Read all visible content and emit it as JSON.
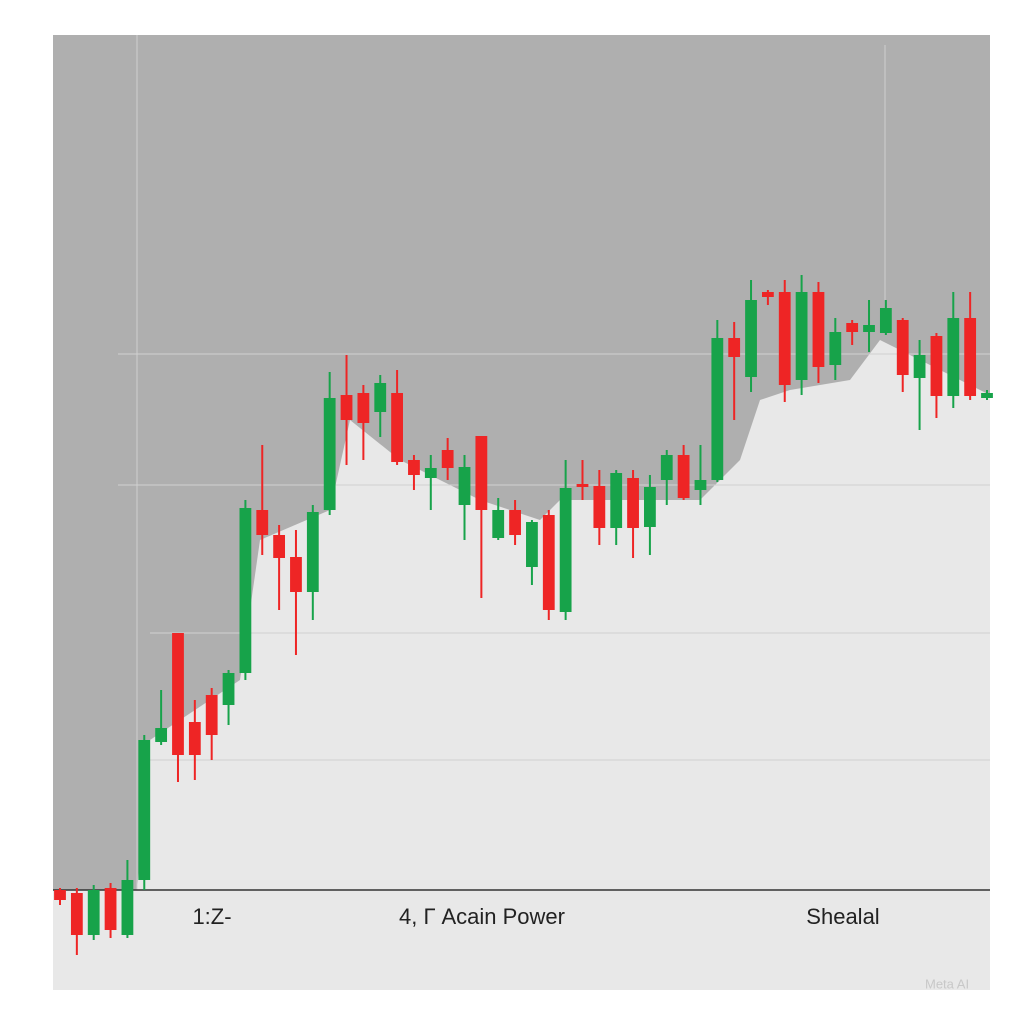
{
  "chart_data": {
    "type": "candlestick",
    "open": [
      110,
      107,
      65,
      112,
      65,
      120,
      258,
      367,
      278,
      305,
      295,
      327,
      490,
      465,
      443,
      408,
      490,
      605,
      607,
      588,
      607,
      540,
      522,
      550,
      495,
      564,
      462,
      490,
      433,
      485,
      388,
      516,
      514,
      472,
      522,
      473,
      520,
      545,
      510,
      520,
      662,
      623,
      708,
      708,
      620,
      708,
      635,
      677,
      668,
      667,
      680,
      622,
      664,
      604,
      682,
      602
    ],
    "high": [
      112,
      112,
      115,
      117,
      140,
      265,
      310,
      367,
      300,
      312,
      330,
      500,
      555,
      475,
      470,
      495,
      628,
      645,
      615,
      625,
      630,
      545,
      545,
      562,
      545,
      564,
      502,
      500,
      480,
      490,
      540,
      540,
      530,
      530,
      530,
      525,
      550,
      555,
      555,
      680,
      678,
      720,
      710,
      720,
      725,
      718,
      682,
      680,
      700,
      700,
      682,
      660,
      667,
      708,
      708,
      610
    ],
    "low": [
      95,
      45,
      60,
      62,
      62,
      110,
      255,
      218,
      220,
      240,
      275,
      320,
      445,
      390,
      345,
      380,
      485,
      535,
      540,
      563,
      535,
      510,
      490,
      520,
      460,
      402,
      460,
      455,
      415,
      380,
      380,
      500,
      455,
      455,
      442,
      445,
      495,
      500,
      495,
      518,
      580,
      608,
      695,
      598,
      605,
      617,
      620,
      655,
      648,
      665,
      608,
      570,
      582,
      592,
      600,
      600
    ],
    "close": [
      100,
      65,
      110,
      70,
      120,
      260,
      272,
      245,
      245,
      265,
      327,
      492,
      465,
      442,
      408,
      488,
      602,
      580,
      577,
      617,
      538,
      525,
      532,
      532,
      533,
      490,
      490,
      465,
      478,
      390,
      512,
      513,
      472,
      527,
      472,
      513,
      545,
      502,
      520,
      662,
      643,
      700,
      703,
      615,
      708,
      633,
      668,
      668,
      675,
      692,
      625,
      645,
      604,
      682,
      604,
      607
    ],
    "up_color": "#17a34a",
    "down_color": "#ee2525",
    "ylim": [
      10,
      965
    ],
    "annotations": [
      "1:Z-",
      "4, Г Acain Power",
      "Shealal"
    ],
    "watermark": "Meta AI"
  }
}
